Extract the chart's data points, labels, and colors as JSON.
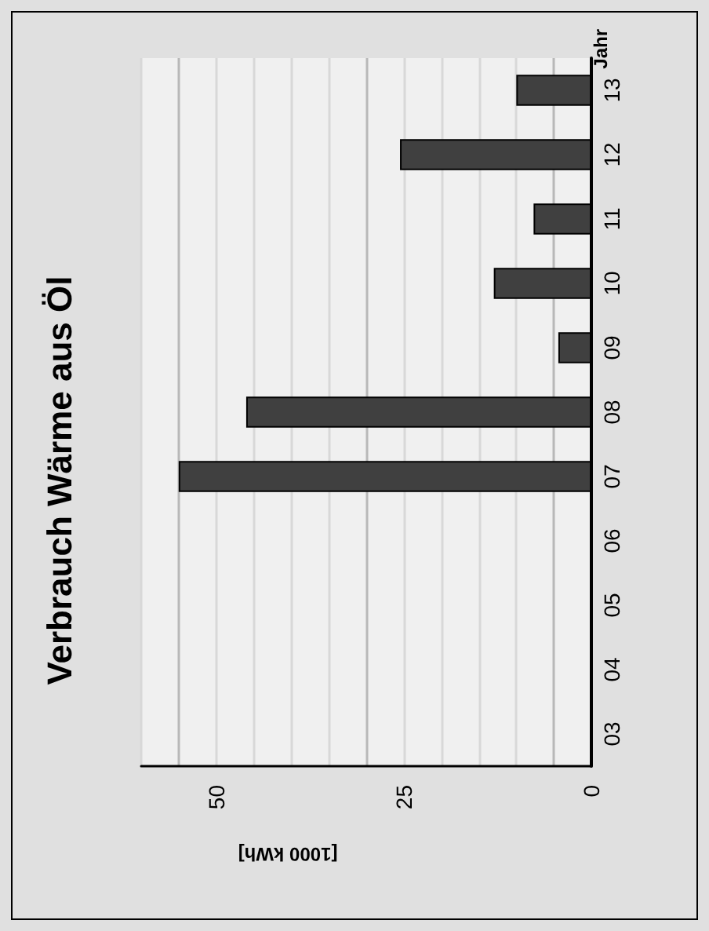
{
  "chart_data": {
    "type": "bar",
    "title": "Verbrauch Wärme aus Öl",
    "xlabel": "[1000 kWh]",
    "ylabel": "Jahr",
    "orientation": "horizontal",
    "categories": [
      "13",
      "12",
      "11",
      "10",
      "09",
      "08",
      "07",
      "06",
      "05",
      "04",
      "03"
    ],
    "values": [
      10,
      25.5,
      7.7,
      13,
      4.4,
      46,
      55,
      null,
      null,
      null,
      null
    ],
    "color": "#404040",
    "xlim": [
      60,
      0
    ],
    "xticks": [
      0,
      {
        "value": 5,
        "label": null
      },
      {
        "value": 10,
        "label": null
      },
      {
        "value": 15,
        "label": null
      },
      {
        "value": 20,
        "label": null
      },
      25,
      {
        "value": 30,
        "label": null
      },
      {
        "value": 35,
        "label": null
      },
      {
        "value": 40,
        "label": null
      },
      {
        "value": 45,
        "label": null
      },
      50,
      {
        "value": 55,
        "label": null
      },
      {
        "value": 60,
        "label": null
      }
    ],
    "grid": "x"
  }
}
